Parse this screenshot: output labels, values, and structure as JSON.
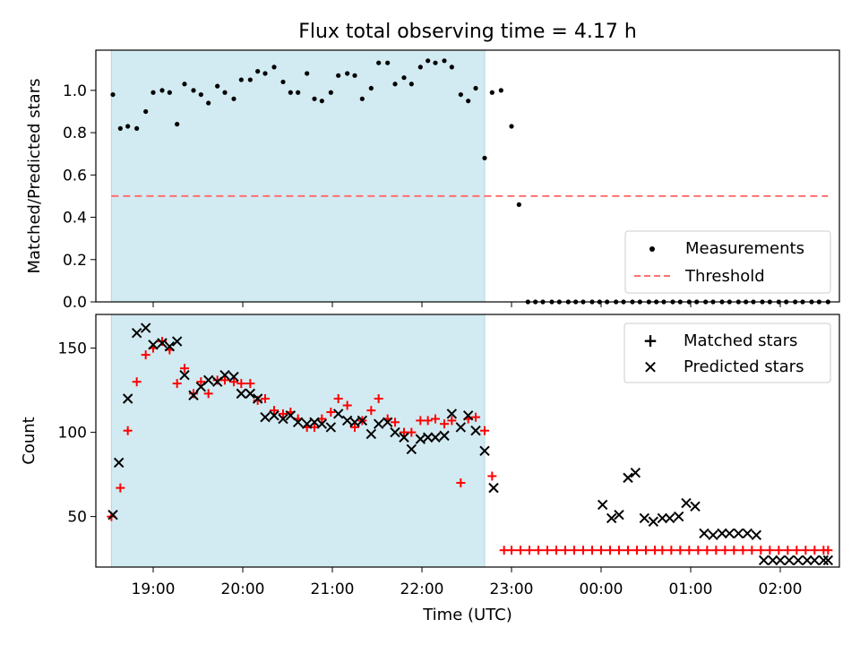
{
  "title": "Flux total observing time = 4.17 h",
  "colors": {
    "shade": "#add8e6",
    "threshold": "#ff7070",
    "matched": "#ff0000",
    "predicted": "#000000",
    "measurement": "#000000"
  },
  "chart_data": [
    {
      "type": "scatter",
      "ylabel": "Matched/Predicted stars",
      "xlim": [
        18.36,
        2.66
      ],
      "ylim": [
        0.0,
        1.19
      ],
      "y_ticks": [
        "0.0",
        "0.2",
        "0.4",
        "0.6",
        "0.8",
        "1.0"
      ],
      "y_tick_values": [
        0.0,
        0.2,
        0.4,
        0.6,
        0.8,
        1.0
      ],
      "shaded_x_range": [
        "18:32",
        "22:42"
      ],
      "threshold": {
        "name": "Threshold",
        "value": 0.5,
        "x_range": [
          "18:32",
          "02:32"
        ]
      },
      "legend": {
        "placement": "lower right",
        "entries": [
          "Measurements",
          "Threshold"
        ]
      },
      "series": [
        {
          "name": "Measurements",
          "points": [
            [
              "18:33",
              0.98
            ],
            [
              "18:38",
              0.82
            ],
            [
              "18:43",
              0.83
            ],
            [
              "18:49",
              0.82
            ],
            [
              "18:55",
              0.9
            ],
            [
              "19:00",
              0.99
            ],
            [
              "19:06",
              1.0
            ],
            [
              "19:11",
              0.99
            ],
            [
              "19:16",
              0.84
            ],
            [
              "19:21",
              1.03
            ],
            [
              "19:27",
              1.0
            ],
            [
              "19:32",
              0.98
            ],
            [
              "19:37",
              0.94
            ],
            [
              "19:43",
              1.02
            ],
            [
              "19:48",
              0.99
            ],
            [
              "19:54",
              0.96
            ],
            [
              "19:59",
              1.05
            ],
            [
              "20:05",
              1.05
            ],
            [
              "20:10",
              1.09
            ],
            [
              "20:15",
              1.08
            ],
            [
              "20:21",
              1.11
            ],
            [
              "20:27",
              1.04
            ],
            [
              "20:32",
              0.99
            ],
            [
              "20:37",
              0.99
            ],
            [
              "20:43",
              1.08
            ],
            [
              "20:48",
              0.96
            ],
            [
              "20:53",
              0.95
            ],
            [
              "20:59",
              0.99
            ],
            [
              "21:04",
              1.07
            ],
            [
              "21:10",
              1.08
            ],
            [
              "21:15",
              1.07
            ],
            [
              "21:20",
              0.96
            ],
            [
              "21:26",
              1.01
            ],
            [
              "21:31",
              1.13
            ],
            [
              "21:37",
              1.13
            ],
            [
              "21:42",
              1.03
            ],
            [
              "21:48",
              1.06
            ],
            [
              "21:53",
              1.03
            ],
            [
              "21:59",
              1.11
            ],
            [
              "22:04",
              1.14
            ],
            [
              "22:09",
              1.13
            ],
            [
              "22:15",
              1.14
            ],
            [
              "22:20",
              1.11
            ],
            [
              "22:26",
              0.98
            ],
            [
              "22:31",
              0.95
            ],
            [
              "22:36",
              1.01
            ],
            [
              "22:42",
              0.68
            ],
            [
              "22:47",
              0.99
            ],
            [
              "22:53",
              1.0
            ],
            [
              "23:00",
              0.83
            ],
            [
              "23:05",
              0.46
            ],
            [
              "23:11",
              0.0
            ],
            [
              "23:16",
              0.0
            ],
            [
              "23:21",
              0.0
            ],
            [
              "23:27",
              0.0
            ],
            [
              "23:32",
              0.0
            ],
            [
              "23:38",
              0.0
            ],
            [
              "23:43",
              0.0
            ],
            [
              "23:48",
              0.0
            ],
            [
              "23:54",
              0.0
            ],
            [
              "23:59",
              0.0
            ],
            [
              "00:04",
              0.0
            ],
            [
              "00:10",
              0.0
            ],
            [
              "00:15",
              0.0
            ],
            [
              "00:21",
              0.0
            ],
            [
              "00:26",
              0.0
            ],
            [
              "00:32",
              0.0
            ],
            [
              "00:37",
              0.0
            ],
            [
              "00:42",
              0.0
            ],
            [
              "00:48",
              0.0
            ],
            [
              "00:53",
              0.0
            ],
            [
              "00:59",
              0.0
            ],
            [
              "01:04",
              0.0
            ],
            [
              "01:10",
              0.0
            ],
            [
              "01:15",
              0.0
            ],
            [
              "01:21",
              0.0
            ],
            [
              "01:26",
              0.0
            ],
            [
              "01:32",
              0.0
            ],
            [
              "01:37",
              0.0
            ],
            [
              "01:42",
              0.0
            ],
            [
              "01:48",
              0.0
            ],
            [
              "01:53",
              0.0
            ],
            [
              "01:59",
              0.0
            ],
            [
              "02:04",
              0.0
            ],
            [
              "02:10",
              0.0
            ],
            [
              "02:15",
              0.0
            ],
            [
              "02:21",
              0.0
            ],
            [
              "02:26",
              0.0
            ],
            [
              "02:32",
              0.0
            ]
          ]
        }
      ]
    },
    {
      "type": "scatter",
      "xlabel": "Time (UTC)",
      "ylabel": "Count",
      "xlim": [
        18.36,
        2.66
      ],
      "ylim": [
        20,
        170
      ],
      "x_ticks": [
        "19:00",
        "20:00",
        "21:00",
        "22:00",
        "23:00",
        "00:00",
        "01:00",
        "02:00"
      ],
      "y_ticks": [
        "50",
        "100",
        "150"
      ],
      "y_tick_values": [
        50,
        100,
        150
      ],
      "shaded_x_range": [
        "18:32",
        "22:42"
      ],
      "legend": {
        "placement": "upper right",
        "entries": [
          "Matched stars",
          "Predicted stars"
        ]
      },
      "series": [
        {
          "name": "Matched stars",
          "points": [
            [
              "18:32",
              50
            ],
            [
              "18:38",
              67
            ],
            [
              "18:43",
              101
            ],
            [
              "18:49",
              130
            ],
            [
              "18:55",
              146
            ],
            [
              "19:00",
              150
            ],
            [
              "19:06",
              154
            ],
            [
              "19:11",
              149
            ],
            [
              "19:16",
              129
            ],
            [
              "19:21",
              138
            ],
            [
              "19:27",
              123
            ],
            [
              "19:32",
              130
            ],
            [
              "19:37",
              123
            ],
            [
              "19:43",
              131
            ],
            [
              "19:48",
              131
            ],
            [
              "19:54",
              130
            ],
            [
              "19:59",
              129
            ],
            [
              "20:05",
              129
            ],
            [
              "20:10",
              119
            ],
            [
              "20:15",
              120
            ],
            [
              "20:21",
              113
            ],
            [
              "20:27",
              111
            ],
            [
              "20:32",
              112
            ],
            [
              "20:37",
              108
            ],
            [
              "20:43",
              103
            ],
            [
              "20:48",
              103
            ],
            [
              "20:53",
              108
            ],
            [
              "20:59",
              112
            ],
            [
              "21:04",
              120
            ],
            [
              "21:10",
              116
            ],
            [
              "21:15",
              103
            ],
            [
              "21:20",
              107
            ],
            [
              "21:26",
              113
            ],
            [
              "21:31",
              120
            ],
            [
              "21:37",
              108
            ],
            [
              "21:42",
              106
            ],
            [
              "21:48",
              100
            ],
            [
              "21:53",
              100
            ],
            [
              "21:59",
              107
            ],
            [
              "22:04",
              107
            ],
            [
              "22:09",
              108
            ],
            [
              "22:15",
              105
            ],
            [
              "22:20",
              107
            ],
            [
              "22:26",
              70
            ],
            [
              "22:31",
              108
            ],
            [
              "22:36",
              109
            ],
            [
              "22:42",
              101
            ],
            [
              "22:47",
              74
            ],
            [
              "22:55",
              30
            ],
            [
              "23:00",
              30
            ],
            [
              "23:06",
              30
            ],
            [
              "23:12",
              30
            ],
            [
              "23:18",
              30
            ],
            [
              "23:24",
              30
            ],
            [
              "23:30",
              30
            ],
            [
              "23:36",
              30
            ],
            [
              "23:42",
              30
            ],
            [
              "23:48",
              30
            ],
            [
              "23:54",
              30
            ],
            [
              "00:00",
              30
            ],
            [
              "00:06",
              30
            ],
            [
              "00:12",
              30
            ],
            [
              "00:18",
              30
            ],
            [
              "00:24",
              30
            ],
            [
              "00:30",
              30
            ],
            [
              "00:36",
              30
            ],
            [
              "00:41",
              30
            ],
            [
              "00:47",
              30
            ],
            [
              "00:53",
              30
            ],
            [
              "00:59",
              30
            ],
            [
              "01:05",
              30
            ],
            [
              "01:11",
              30
            ],
            [
              "01:17",
              30
            ],
            [
              "01:23",
              30
            ],
            [
              "01:29",
              30
            ],
            [
              "01:35",
              30
            ],
            [
              "01:41",
              30
            ],
            [
              "01:47",
              30
            ],
            [
              "01:53",
              30
            ],
            [
              "01:59",
              30
            ],
            [
              "02:05",
              30
            ],
            [
              "02:11",
              30
            ],
            [
              "02:17",
              30
            ],
            [
              "02:23",
              30
            ],
            [
              "02:29",
              30
            ],
            [
              "02:32",
              30
            ]
          ]
        },
        {
          "name": "Predicted stars",
          "points": [
            [
              "18:33",
              51
            ],
            [
              "18:37",
              82
            ],
            [
              "18:43",
              120
            ],
            [
              "18:49",
              159
            ],
            [
              "18:55",
              162
            ],
            [
              "19:00",
              152
            ],
            [
              "19:06",
              153
            ],
            [
              "19:11",
              151
            ],
            [
              "19:16",
              154
            ],
            [
              "19:21",
              134
            ],
            [
              "19:27",
              122
            ],
            [
              "19:32",
              127
            ],
            [
              "19:37",
              131
            ],
            [
              "19:43",
              130
            ],
            [
              "19:48",
              134
            ],
            [
              "19:54",
              133
            ],
            [
              "19:59",
              123
            ],
            [
              "20:05",
              123
            ],
            [
              "20:10",
              120
            ],
            [
              "20:15",
              109
            ],
            [
              "20:21",
              110
            ],
            [
              "20:27",
              108
            ],
            [
              "20:32",
              110
            ],
            [
              "20:37",
              106
            ],
            [
              "20:43",
              105
            ],
            [
              "20:48",
              106
            ],
            [
              "20:53",
              105
            ],
            [
              "20:59",
              103
            ],
            [
              "21:04",
              111
            ],
            [
              "21:10",
              107
            ],
            [
              "21:15",
              106
            ],
            [
              "21:20",
              107
            ],
            [
              "21:26",
              99
            ],
            [
              "21:31",
              105
            ],
            [
              "21:37",
              106
            ],
            [
              "21:42",
              100
            ],
            [
              "21:48",
              97
            ],
            [
              "21:53",
              90
            ],
            [
              "21:59",
              96
            ],
            [
              "22:04",
              97
            ],
            [
              "22:09",
              97
            ],
            [
              "22:15",
              98
            ],
            [
              "22:20",
              111
            ],
            [
              "22:26",
              103
            ],
            [
              "22:31",
              110
            ],
            [
              "22:36",
              101
            ],
            [
              "22:42",
              89
            ],
            [
              "22:48",
              67
            ],
            [
              "00:01",
              57
            ],
            [
              "00:07",
              49
            ],
            [
              "00:12",
              51
            ],
            [
              "00:18",
              73
            ],
            [
              "00:23",
              76
            ],
            [
              "00:29",
              49
            ],
            [
              "00:35",
              47
            ],
            [
              "00:41",
              49
            ],
            [
              "00:46",
              49
            ],
            [
              "00:52",
              50
            ],
            [
              "00:57",
              58
            ],
            [
              "01:03",
              56
            ],
            [
              "01:09",
              40
            ],
            [
              "01:15",
              39
            ],
            [
              "01:21",
              40
            ],
            [
              "01:26",
              40
            ],
            [
              "01:32",
              40
            ],
            [
              "01:38",
              40
            ],
            [
              "01:44",
              39
            ],
            [
              "01:49",
              24
            ],
            [
              "01:55",
              24
            ],
            [
              "02:00",
              24
            ],
            [
              "02:06",
              24
            ],
            [
              "02:12",
              24
            ],
            [
              "02:18",
              24
            ],
            [
              "02:23",
              24
            ],
            [
              "02:29",
              24
            ],
            [
              "02:32",
              24
            ]
          ]
        }
      ]
    }
  ]
}
